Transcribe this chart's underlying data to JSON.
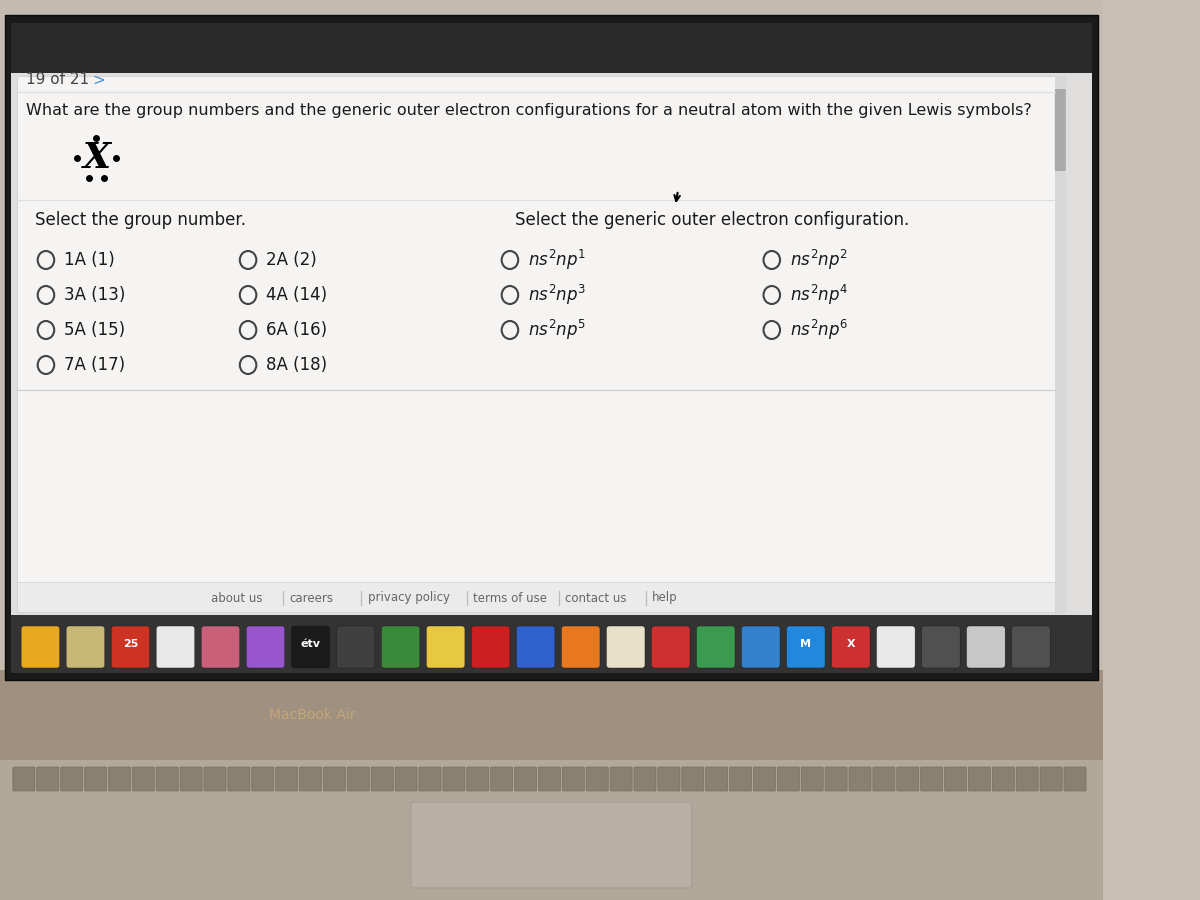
{
  "title_nav": "19 of 21   >",
  "question": "What are the group numbers and the generic outer electron configurations for a neutral atom with the given Lewis symbols?",
  "left_label": "Select the group number.",
  "right_label": "Select the generic outer electron configuration.",
  "group_options_col1": [
    "1A (1)",
    "3A (13)",
    "5A (15)",
    "7A (17)"
  ],
  "group_options_col2": [
    "2A (2)",
    "4A (14)",
    "6A (16)",
    "8A (18)"
  ],
  "footer_links": [
    "about us",
    "careers",
    "privacy policy",
    "terms of use",
    "contact us",
    "help"
  ],
  "macbook_label": "MacBook Air",
  "bg_body_top": "#c8c0b4",
  "bg_body_bottom": "#b8a898",
  "bezel_color": "#1a1a1a",
  "screen_bg": "#d8d8d8",
  "content_bg": "#f2f2f2",
  "content_border": "#cccccc",
  "text_color": "#1a1a1a",
  "nav_color": "#4a90d9",
  "circle_color": "#444444",
  "footer_text": "#666666",
  "taskbar_bg": "#2a2a2a",
  "dock_bg": "#404040",
  "keyboard_bg": "#9a9080",
  "trackpad_color": "#b8b0a4"
}
